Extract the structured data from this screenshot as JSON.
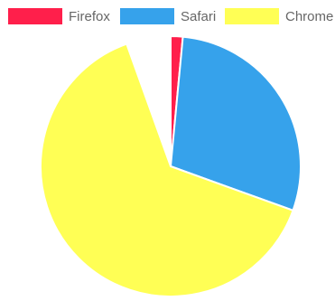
{
  "chart_data": {
    "type": "pie",
    "title": "",
    "labels": [
      "Firefox",
      "Safari",
      "Chrome"
    ],
    "values": [
      1.5,
      29,
      64
    ],
    "colors": [
      "#ff1f4b",
      "#36a2eb",
      "#ffff55"
    ],
    "legend_position": "top",
    "start_angle_deg": -90
  }
}
